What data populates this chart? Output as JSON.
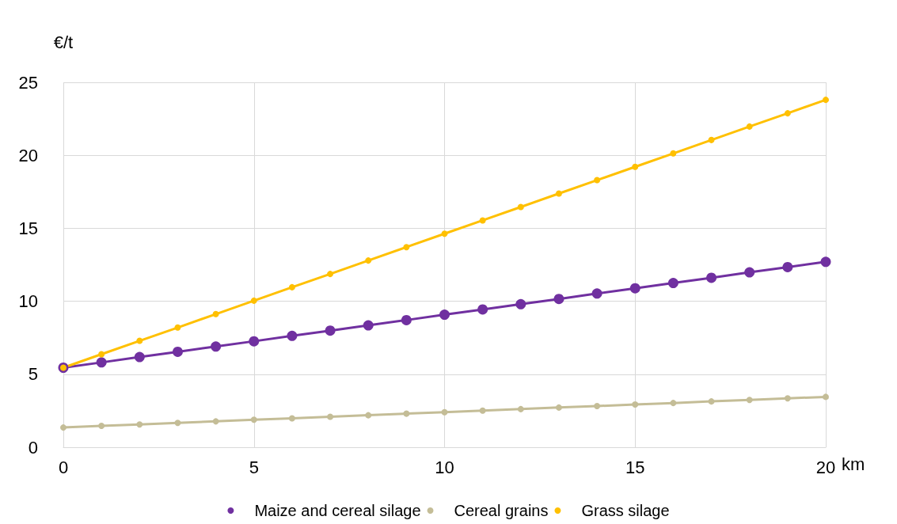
{
  "chart_data": {
    "type": "line",
    "xlabel": "km",
    "ylabel": "€/t",
    "x": [
      0,
      1,
      2,
      3,
      4,
      5,
      6,
      7,
      8,
      9,
      10,
      11,
      12,
      13,
      14,
      15,
      16,
      17,
      18,
      19,
      20
    ],
    "series": [
      {
        "name": "Maize and cereal silage",
        "color": "#7030a0",
        "values": [
          5.45,
          5.81,
          6.18,
          6.54,
          6.9,
          7.26,
          7.63,
          7.99,
          8.35,
          8.71,
          9.08,
          9.44,
          9.8,
          10.16,
          10.53,
          10.89,
          11.25,
          11.61,
          11.98,
          12.34,
          12.7
        ]
      },
      {
        "name": "Cereal grains",
        "color": "#c4bd97",
        "values": [
          1.35,
          1.46,
          1.56,
          1.67,
          1.77,
          1.88,
          1.98,
          2.09,
          2.19,
          2.3,
          2.4,
          2.51,
          2.61,
          2.72,
          2.82,
          2.93,
          3.03,
          3.14,
          3.24,
          3.35,
          3.45
        ]
      },
      {
        "name": "Grass silage",
        "color": "#ffc000",
        "values": [
          5.45,
          6.37,
          7.29,
          8.2,
          9.12,
          10.04,
          10.96,
          11.87,
          12.79,
          13.71,
          14.63,
          15.54,
          16.46,
          17.38,
          18.3,
          19.21,
          20.13,
          21.05,
          21.97,
          22.88,
          23.8
        ]
      }
    ],
    "xlim": [
      0,
      20
    ],
    "xticks": [
      0,
      5,
      10,
      15,
      20
    ],
    "ylim": [
      0,
      25
    ],
    "yticks": [
      0,
      5,
      10,
      15,
      20,
      25
    ],
    "grid": true,
    "legend": "bottom",
    "marker": "circle",
    "line_style": "solid"
  }
}
